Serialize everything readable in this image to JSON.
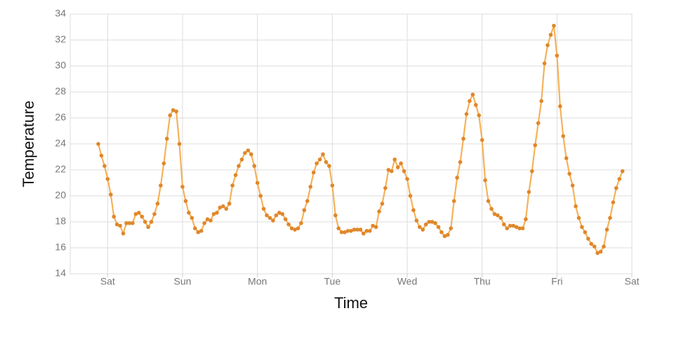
{
  "chart_data": {
    "type": "line",
    "xlabel": "Time",
    "ylabel": "Temperature",
    "x": [
      -3,
      -2,
      -1,
      0,
      1,
      2,
      3,
      4,
      5,
      6,
      7,
      8,
      9,
      10,
      11,
      12,
      13,
      14,
      15,
      16,
      17,
      18,
      19,
      20,
      21,
      22,
      23,
      24,
      25,
      26,
      27,
      28,
      29,
      30,
      31,
      32,
      33,
      34,
      35,
      36,
      37,
      38,
      39,
      40,
      41,
      42,
      43,
      44,
      45,
      46,
      47,
      48,
      49,
      50,
      51,
      52,
      53,
      54,
      55,
      56,
      57,
      58,
      59,
      60,
      61,
      62,
      63,
      64,
      65,
      66,
      67,
      68,
      69,
      70,
      71,
      72,
      73,
      74,
      75,
      76,
      77,
      78,
      79,
      80,
      81,
      82,
      83,
      84,
      85,
      86,
      87,
      88,
      89,
      90,
      91,
      92,
      93,
      94,
      95,
      96,
      97,
      98,
      99,
      100,
      101,
      102,
      103,
      104,
      105,
      106,
      107,
      108,
      109,
      110,
      111,
      112,
      113,
      114,
      115,
      116,
      117,
      118,
      119,
      120,
      121,
      122,
      123,
      124,
      125,
      126,
      127,
      128,
      129,
      130,
      131,
      132,
      133,
      134,
      135,
      136,
      137,
      138,
      139,
      140,
      141,
      142,
      143,
      144,
      145,
      146,
      147,
      148,
      149,
      150,
      151,
      152,
      153,
      154,
      155,
      156,
      157,
      158,
      159,
      160,
      161,
      162,
      163,
      164,
      165
    ],
    "series": [
      {
        "color": "#f5b25a",
        "marker_color": "#e0872a",
        "values": [
          24.0,
          23.1,
          22.3,
          21.3,
          20.1,
          18.4,
          17.8,
          17.7,
          17.1,
          17.9,
          17.9,
          17.9,
          18.6,
          18.7,
          18.4,
          18.0,
          17.6,
          18.0,
          18.6,
          19.4,
          20.8,
          22.5,
          24.4,
          26.2,
          26.6,
          26.5,
          24.0,
          20.7,
          19.6,
          18.7,
          18.3,
          17.5,
          17.2,
          17.3,
          17.9,
          18.2,
          18.1,
          18.6,
          18.7,
          19.1,
          19.2,
          19.0,
          19.4,
          20.8,
          21.6,
          22.3,
          22.8,
          23.3,
          23.5,
          23.2,
          22.3,
          21.0,
          20.0,
          19.0,
          18.5,
          18.3,
          18.1,
          18.5,
          18.7,
          18.6,
          18.2,
          17.8,
          17.5,
          17.4,
          17.5,
          17.9,
          18.9,
          19.6,
          20.7,
          21.8,
          22.5,
          22.8,
          23.2,
          22.6,
          22.3,
          20.8,
          18.5,
          17.5,
          17.2,
          17.2,
          17.3,
          17.3,
          17.4,
          17.4,
          17.4,
          17.1,
          17.3,
          17.3,
          17.7,
          17.6,
          18.8,
          19.4,
          20.6,
          22.0,
          21.9,
          22.8,
          22.2,
          22.5,
          21.9,
          21.3,
          20.0,
          18.9,
          18.1,
          17.6,
          17.4,
          17.8,
          18.0,
          18.0,
          17.9,
          17.6,
          17.2,
          16.9,
          17.0,
          17.5,
          19.6,
          21.4,
          22.6,
          24.4,
          26.3,
          27.3,
          27.8,
          27.0,
          26.2,
          24.3,
          21.2,
          19.6,
          19.0,
          18.6,
          18.5,
          18.3,
          17.8,
          17.5,
          17.7,
          17.7,
          17.6,
          17.5,
          17.5,
          18.2,
          20.3,
          21.9,
          23.9,
          25.6,
          27.3,
          30.2,
          31.6,
          32.4,
          33.1,
          30.8,
          26.9,
          24.6,
          22.9,
          21.7,
          20.8,
          19.2,
          18.3,
          17.6,
          17.2,
          16.7,
          16.3,
          16.1,
          15.6,
          15.7,
          16.1,
          17.4,
          18.3,
          19.5,
          20.6,
          21.3,
          21.9
        ]
      }
    ],
    "xlim": [
      -12,
      168
    ],
    "xticks": [
      {
        "value": 0,
        "label": "Sat"
      },
      {
        "value": 24,
        "label": "Sun"
      },
      {
        "value": 48,
        "label": "Mon"
      },
      {
        "value": 72,
        "label": "Tue"
      },
      {
        "value": 96,
        "label": "Wed"
      },
      {
        "value": 120,
        "label": "Thu"
      },
      {
        "value": 144,
        "label": "Fri"
      },
      {
        "value": 168,
        "label": "Sat"
      }
    ],
    "ylim": [
      14,
      34
    ],
    "yticks": [
      14,
      16,
      18,
      20,
      22,
      24,
      26,
      28,
      30,
      32,
      34
    ],
    "grid": true
  }
}
